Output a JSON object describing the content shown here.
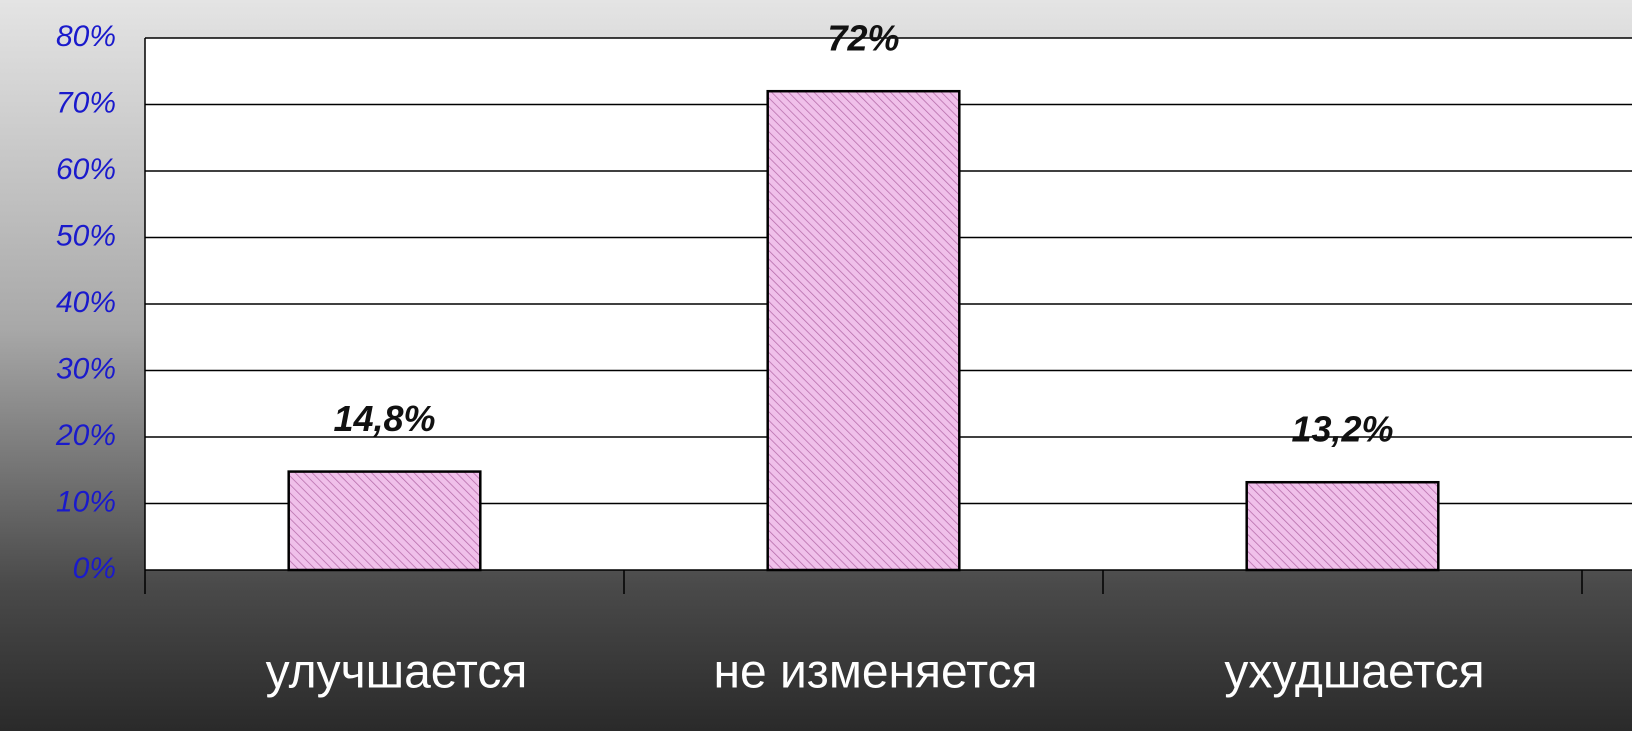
{
  "chart_data": {
    "type": "bar",
    "categories": [
      "улучшается",
      "не изменяется",
      "ухудшается"
    ],
    "values": [
      14.8,
      72,
      13.2
    ],
    "value_labels": [
      "14,8%",
      "72%",
      "13,2%"
    ],
    "color": "#f0c0ea",
    "ylim": [
      0,
      80
    ],
    "yticks": [
      {
        "value": 0,
        "label": "0%"
      },
      {
        "value": 10,
        "label": "10%"
      },
      {
        "value": 20,
        "label": "20%"
      },
      {
        "value": 30,
        "label": "30%"
      },
      {
        "value": 40,
        "label": "40%"
      },
      {
        "value": 50,
        "label": "50%"
      },
      {
        "value": 60,
        "label": "60%"
      },
      {
        "value": 70,
        "label": "70%"
      },
      {
        "value": 80,
        "label": "80%"
      }
    ],
    "grid": true
  }
}
